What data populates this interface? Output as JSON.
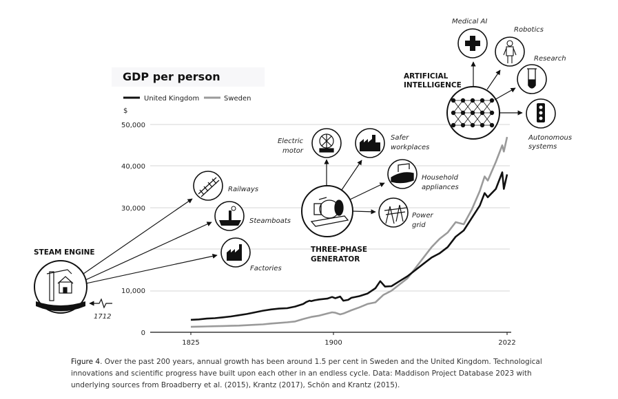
{
  "chart_data": {
    "type": "line",
    "title": "GDP per person",
    "ylabel": "$",
    "xlim": [
      1825,
      2022
    ],
    "ylim": [
      0,
      50000
    ],
    "x_ticks": [
      "1825",
      "1900",
      "2022"
    ],
    "y_ticks": [
      "0",
      "10,000",
      "20,000",
      "30,000",
      "40,000",
      "50,000"
    ],
    "legend": [
      "United Kingdom",
      "Sweden"
    ],
    "series": [
      {
        "name": "United Kingdom",
        "color": "#111111",
        "x": [
          1825,
          1830,
          1835,
          1840,
          1845,
          1850,
          1855,
          1860,
          1865,
          1870,
          1875,
          1880,
          1885,
          1890,
          1895,
          1897,
          1899,
          1900,
          1902,
          1905,
          1910,
          1913,
          1915,
          1918,
          1920,
          1923,
          1925,
          1930,
          1935,
          1940,
          1943,
          1946,
          1950,
          1955,
          1960,
          1965,
          1970,
          1975,
          1980,
          1985,
          1990,
          1995,
          2000,
          2005,
          2008,
          2010,
          2015,
          2019,
          2020,
          2022
        ],
        "y": [
          3000,
          3100,
          3300,
          3400,
          3600,
          3800,
          4100,
          4400,
          4800,
          5200,
          5500,
          5700,
          5800,
          6200,
          6800,
          7300,
          7600,
          7500,
          7700,
          7900,
          8100,
          8500,
          8200,
          8600,
          7600,
          7800,
          8300,
          8700,
          9300,
          10600,
          12300,
          11000,
          11100,
          12300,
          13500,
          15000,
          16500,
          18000,
          19000,
          20500,
          23000,
          24500,
          27500,
          30500,
          33500,
          32500,
          34500,
          38500,
          34500,
          38000
        ]
      },
      {
        "name": "Sweden",
        "color": "#9a9a9a",
        "x": [
          1825,
          1830,
          1835,
          1840,
          1845,
          1850,
          1855,
          1860,
          1865,
          1870,
          1875,
          1880,
          1885,
          1890,
          1895,
          1900,
          1905,
          1910,
          1913,
          1915,
          1918,
          1920,
          1925,
          1930,
          1935,
          1940,
          1945,
          1950,
          1955,
          1960,
          1965,
          1970,
          1975,
          1980,
          1985,
          1990,
          1995,
          2000,
          2005,
          2008,
          2010,
          2015,
          2019,
          2020,
          2022
        ],
        "y": [
          1300,
          1350,
          1400,
          1450,
          1500,
          1550,
          1600,
          1700,
          1800,
          1900,
          2100,
          2250,
          2400,
          2600,
          3200,
          3700,
          4000,
          4500,
          4800,
          4700,
          4300,
          4500,
          5300,
          6000,
          6800,
          7200,
          9000,
          10000,
          11500,
          13000,
          15500,
          18000,
          20500,
          22500,
          24000,
          26500,
          26000,
          29500,
          34000,
          37500,
          36500,
          41000,
          45000,
          43500,
          47000
        ]
      }
    ],
    "annotations": {
      "steam_engine": "STEAM ENGINE",
      "year_1712": "1712",
      "railways": "Railways",
      "steamboats": "Steamboats",
      "factories": "Factories",
      "generator_line1": "THREE-PHASE",
      "generator_line2": "GENERATOR",
      "electric_motor_1": "Electric",
      "electric_motor_2": "motor",
      "safer_workplaces_1": "Safer",
      "safer_workplaces_2": "workplaces",
      "household_1": "Household",
      "household_2": "appliances",
      "power_grid_1": "Power",
      "power_grid_2": "grid",
      "ai_line1": "ARTIFICIAL",
      "ai_line2": "INTELLIGENCE",
      "medical_ai": "Medical AI",
      "robotics": "Robotics",
      "research": "Research",
      "autonomous_1": "Autonomous",
      "autonomous_2": "systems"
    }
  },
  "caption": {
    "label": "Figure 4",
    "text": ". Over the past 200 years, annual growth has been around 1.5 per cent in Sweden and the United Kingdom. Technological innovations and scientific progress have built upon each other in an endless cycle. Data: Maddison Project Database 2023 with underlying sources from Broadberry et al. (2015), Krantz (2017), Schön and Krantz (2015)."
  }
}
